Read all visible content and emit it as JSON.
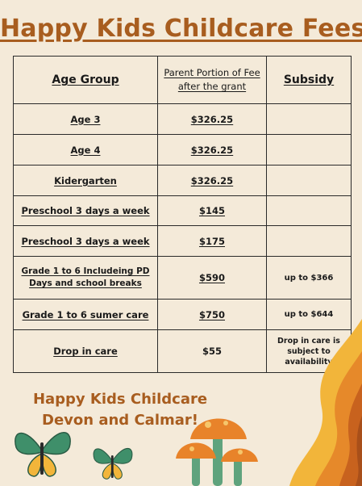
{
  "title": "Happy Kids Childcare Fees",
  "table": {
    "headers": {
      "age_group": "Age Group",
      "parent_portion": "Parent Portion of Fee after the grant",
      "subsidy": "Subsidy"
    },
    "rows": [
      {
        "age": "Age 3",
        "fee": "$326.25",
        "subsidy": ""
      },
      {
        "age": "Age 4",
        "fee": "$326.25",
        "subsidy": ""
      },
      {
        "age": "Kidergarten",
        "fee": "$326.25",
        "subsidy": ""
      },
      {
        "age": "Preschool 3 days a week",
        "fee": "$145",
        "subsidy": ""
      },
      {
        "age": "Preschool 3 days a week",
        "fee": "$175",
        "subsidy": ""
      },
      {
        "age": "Grade 1 to 6 Includeing PD Days and school breaks",
        "fee": "$590",
        "subsidy": "up to $366"
      },
      {
        "age": "Grade 1 to 6 sumer care",
        "fee": "$750",
        "subsidy": "up to $644"
      },
      {
        "age": "Drop in care",
        "fee": "$55",
        "subsidy": "Drop in care is subject to availability"
      }
    ]
  },
  "footer": {
    "line1": "Happy Kids Childcare",
    "line2": "Devon and Calmar!"
  },
  "colors": {
    "background": "#f4ead9",
    "title": "#a85d1f",
    "accent_orange": "#e6892a",
    "accent_yellow": "#f2b53a",
    "butterfly_green": "#3f8f6a"
  },
  "icons": [
    "butterfly-icon",
    "mushroom-icon",
    "flame-wave-decoration"
  ]
}
